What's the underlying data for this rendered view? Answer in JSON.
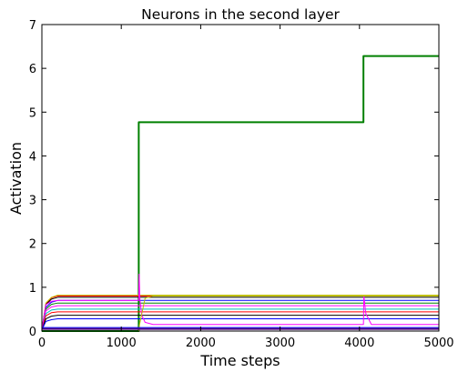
{
  "chart_data": {
    "type": "line",
    "title": "Neurons in the second layer",
    "xlabel": "Time steps",
    "ylabel": "Activation",
    "xlim": [
      0,
      5000
    ],
    "ylim": [
      0,
      7
    ],
    "xticks": [
      "0",
      "1000",
      "2000",
      "3000",
      "4000",
      "5000"
    ],
    "yticks": [
      "0",
      "1",
      "2",
      "3",
      "4",
      "5",
      "6",
      "7"
    ],
    "grid": false,
    "legend": "none",
    "series": [
      {
        "color": "#008000",
        "width": 2,
        "points": [
          [
            0,
            0
          ],
          [
            1220,
            0
          ],
          [
            1220,
            4.77
          ],
          [
            4050,
            4.77
          ],
          [
            4050,
            6.28
          ],
          [
            5000,
            6.28
          ]
        ]
      },
      {
        "color": "#ff0000",
        "width": 1,
        "points": [
          [
            0,
            0.03
          ],
          [
            50,
            0.62
          ],
          [
            120,
            0.76
          ],
          [
            200,
            0.8
          ],
          [
            1220,
            0.8
          ],
          [
            5000,
            0.8
          ]
        ]
      },
      {
        "color": "#bfbf00",
        "width": 1,
        "points": [
          [
            0,
            0.03
          ],
          [
            50,
            0.64
          ],
          [
            120,
            0.77
          ],
          [
            200,
            0.82
          ],
          [
            1220,
            0.82
          ],
          [
            5000,
            0.82
          ]
        ]
      },
      {
        "color": "#000000",
        "width": 1,
        "points": [
          [
            0,
            0.03
          ],
          [
            50,
            0.6
          ],
          [
            120,
            0.73
          ],
          [
            200,
            0.77
          ],
          [
            1220,
            0.77
          ],
          [
            5000,
            0.77
          ]
        ]
      },
      {
        "color": "#0000ff",
        "width": 1,
        "points": [
          [
            0,
            0.03
          ],
          [
            50,
            0.54
          ],
          [
            120,
            0.66
          ],
          [
            200,
            0.7
          ],
          [
            1220,
            0.7
          ],
          [
            5000,
            0.7
          ]
        ]
      },
      {
        "color": "#008000",
        "width": 1,
        "points": [
          [
            0,
            0.03
          ],
          [
            50,
            0.5
          ],
          [
            120,
            0.61
          ],
          [
            200,
            0.64
          ],
          [
            1220,
            0.64
          ],
          [
            5000,
            0.64
          ]
        ]
      },
      {
        "color": "#ff00ff",
        "width": 1,
        "points": [
          [
            0,
            0.03
          ],
          [
            50,
            0.46
          ],
          [
            120,
            0.55
          ],
          [
            200,
            0.58
          ],
          [
            1220,
            0.58
          ],
          [
            5000,
            0.58
          ]
        ]
      },
      {
        "color": "#00bfbf",
        "width": 1,
        "points": [
          [
            0,
            0.03
          ],
          [
            50,
            0.4
          ],
          [
            120,
            0.48
          ],
          [
            200,
            0.5
          ],
          [
            1220,
            0.5
          ],
          [
            5000,
            0.5
          ]
        ]
      },
      {
        "color": "#ff0000",
        "width": 1,
        "points": [
          [
            0,
            0.03
          ],
          [
            50,
            0.35
          ],
          [
            120,
            0.42
          ],
          [
            200,
            0.44
          ],
          [
            1220,
            0.44
          ],
          [
            5000,
            0.44
          ]
        ]
      },
      {
        "color": "#000000",
        "width": 1,
        "points": [
          [
            0,
            0.03
          ],
          [
            50,
            0.28
          ],
          [
            120,
            0.34
          ],
          [
            200,
            0.36
          ],
          [
            1220,
            0.36
          ],
          [
            5000,
            0.36
          ]
        ]
      },
      {
        "color": "#0000ff",
        "width": 1,
        "points": [
          [
            0,
            0.03
          ],
          [
            50,
            0.22
          ],
          [
            120,
            0.26
          ],
          [
            200,
            0.28
          ],
          [
            1220,
            0.28
          ],
          [
            5000,
            0.28
          ]
        ]
      },
      {
        "color": "#ff00ff",
        "width": 1,
        "points": [
          [
            0,
            0.03
          ],
          [
            50,
            0.6
          ],
          [
            120,
            0.68
          ],
          [
            200,
            0.7
          ],
          [
            1220,
            0.7
          ],
          [
            1225,
            1.3
          ],
          [
            1235,
            0.7
          ],
          [
            1260,
            0.35
          ],
          [
            1300,
            0.2
          ],
          [
            1400,
            0.15
          ],
          [
            4050,
            0.15
          ],
          [
            4055,
            0.8
          ],
          [
            4080,
            0.4
          ],
          [
            4150,
            0.15
          ],
          [
            5000,
            0.15
          ]
        ]
      },
      {
        "color": "#bfbf00",
        "width": 1,
        "points": [
          [
            0,
            0.0
          ],
          [
            1220,
            0.0
          ],
          [
            1230,
            0.15
          ],
          [
            1300,
            0.75
          ],
          [
            1400,
            0.8
          ],
          [
            5000,
            0.8
          ]
        ]
      },
      {
        "color": "#0000ff",
        "width": 1,
        "points": [
          [
            0,
            0.08
          ],
          [
            1220,
            0.08
          ],
          [
            5000,
            0.08
          ]
        ]
      },
      {
        "color": "#4b0082",
        "width": 2,
        "points": [
          [
            0,
            0.05
          ],
          [
            5000,
            0.05
          ]
        ]
      }
    ]
  }
}
